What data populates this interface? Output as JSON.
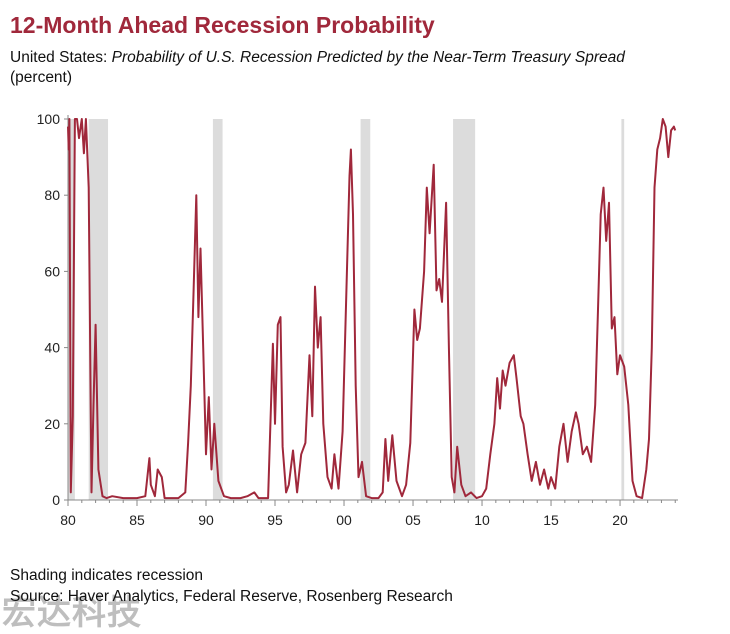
{
  "header": {
    "title": "12-Month Ahead Recession Probability",
    "subtitle_prefix": "United States: ",
    "subtitle_italic": "Probability of U.S. Recession Predicted by the Near-Term Treasury Spread",
    "units": "(percent)"
  },
  "footer": {
    "note": "Shading indicates recession",
    "source": "Source: Haver Analytics, Federal Reserve, Rosenberg Research",
    "watermark": "宏达科技"
  },
  "colors": {
    "line": "#a0283b",
    "title": "#a0283b",
    "recession_shade": "#dcdcdc",
    "axis": "#888888"
  },
  "chart_data": {
    "type": "line",
    "title": "12-Month Ahead Recession Probability",
    "xlabel": "",
    "ylabel": "(percent)",
    "xlim": [
      1980.0,
      2024.2
    ],
    "ylim": [
      0,
      100
    ],
    "x_ticks": [
      1980,
      1985,
      1990,
      1995,
      2000,
      2005,
      2010,
      2015,
      2020
    ],
    "x_tick_labels": [
      "80",
      "85",
      "90",
      "95",
      "00",
      "05",
      "10",
      "15",
      "20"
    ],
    "y_ticks": [
      0,
      20,
      40,
      60,
      80,
      100
    ],
    "y_tick_labels": [
      "0",
      "20",
      "40",
      "60",
      "80",
      "100"
    ],
    "grid": false,
    "recessions": [
      [
        1980.0,
        1980.5
      ],
      [
        1981.5,
        1982.9
      ],
      [
        1990.5,
        1991.2
      ],
      [
        2001.2,
        2001.9
      ],
      [
        2007.9,
        2009.5
      ],
      [
        2020.1,
        2020.3
      ]
    ],
    "series": [
      {
        "points": [
          [
            1980.0,
            98
          ],
          [
            1980.05,
            92
          ],
          [
            1980.1,
            100
          ],
          [
            1980.2,
            2
          ],
          [
            1980.35,
            22
          ],
          [
            1980.5,
            100
          ],
          [
            1980.65,
            100
          ],
          [
            1980.8,
            95
          ],
          [
            1981.0,
            100
          ],
          [
            1981.15,
            91
          ],
          [
            1981.3,
            100
          ],
          [
            1981.5,
            82
          ],
          [
            1981.7,
            2
          ],
          [
            1981.85,
            25
          ],
          [
            1982.0,
            46
          ],
          [
            1982.2,
            8
          ],
          [
            1982.5,
            1
          ],
          [
            1982.8,
            0.5
          ],
          [
            1983.2,
            1
          ],
          [
            1984.0,
            0.5
          ],
          [
            1985.0,
            0.5
          ],
          [
            1985.6,
            1
          ],
          [
            1985.9,
            11
          ],
          [
            1986.0,
            4
          ],
          [
            1986.3,
            1
          ],
          [
            1986.5,
            8
          ],
          [
            1986.8,
            6
          ],
          [
            1987.0,
            0.5
          ],
          [
            1988.0,
            0.5
          ],
          [
            1988.5,
            2
          ],
          [
            1988.7,
            15
          ],
          [
            1988.9,
            30
          ],
          [
            1989.1,
            55
          ],
          [
            1989.3,
            80
          ],
          [
            1989.45,
            48
          ],
          [
            1989.6,
            66
          ],
          [
            1989.8,
            40
          ],
          [
            1990.0,
            12
          ],
          [
            1990.2,
            27
          ],
          [
            1990.4,
            8
          ],
          [
            1990.6,
            20
          ],
          [
            1990.9,
            5
          ],
          [
            1991.3,
            1
          ],
          [
            1991.8,
            0.5
          ],
          [
            1992.5,
            0.5
          ],
          [
            1993.0,
            1
          ],
          [
            1993.5,
            2
          ],
          [
            1993.8,
            0.5
          ],
          [
            1994.5,
            0.5
          ],
          [
            1994.85,
            41
          ],
          [
            1995.0,
            20
          ],
          [
            1995.2,
            46
          ],
          [
            1995.4,
            48
          ],
          [
            1995.55,
            14
          ],
          [
            1995.8,
            2
          ],
          [
            1996.0,
            4
          ],
          [
            1996.3,
            13
          ],
          [
            1996.6,
            2
          ],
          [
            1996.9,
            12
          ],
          [
            1997.2,
            15
          ],
          [
            1997.5,
            38
          ],
          [
            1997.7,
            22
          ],
          [
            1997.9,
            56
          ],
          [
            1998.1,
            40
          ],
          [
            1998.3,
            48
          ],
          [
            1998.5,
            20
          ],
          [
            1998.8,
            6
          ],
          [
            1999.1,
            3
          ],
          [
            1999.3,
            12
          ],
          [
            1999.6,
            3
          ],
          [
            1999.9,
            18
          ],
          [
            2000.15,
            52
          ],
          [
            2000.4,
            85
          ],
          [
            2000.5,
            92
          ],
          [
            2000.65,
            75
          ],
          [
            2000.85,
            30
          ],
          [
            2001.05,
            6
          ],
          [
            2001.3,
            10
          ],
          [
            2001.6,
            1
          ],
          [
            2002.0,
            0.5
          ],
          [
            2002.5,
            0.5
          ],
          [
            2002.8,
            2
          ],
          [
            2003.0,
            16
          ],
          [
            2003.2,
            5
          ],
          [
            2003.5,
            17
          ],
          [
            2003.8,
            5
          ],
          [
            2004.2,
            1
          ],
          [
            2004.5,
            4
          ],
          [
            2004.8,
            15
          ],
          [
            2005.1,
            50
          ],
          [
            2005.3,
            42
          ],
          [
            2005.5,
            45
          ],
          [
            2005.8,
            60
          ],
          [
            2006.0,
            82
          ],
          [
            2006.2,
            70
          ],
          [
            2006.5,
            88
          ],
          [
            2006.7,
            55
          ],
          [
            2006.9,
            58
          ],
          [
            2007.1,
            52
          ],
          [
            2007.4,
            78
          ],
          [
            2007.6,
            40
          ],
          [
            2007.8,
            6
          ],
          [
            2008.0,
            2
          ],
          [
            2008.2,
            14
          ],
          [
            2008.5,
            4
          ],
          [
            2008.8,
            1
          ],
          [
            2009.2,
            2
          ],
          [
            2009.6,
            0.5
          ],
          [
            2010.0,
            1
          ],
          [
            2010.3,
            3
          ],
          [
            2010.6,
            12
          ],
          [
            2010.9,
            20
          ],
          [
            2011.1,
            32
          ],
          [
            2011.3,
            24
          ],
          [
            2011.5,
            34
          ],
          [
            2011.7,
            30
          ],
          [
            2012.0,
            36
          ],
          [
            2012.3,
            38
          ],
          [
            2012.5,
            32
          ],
          [
            2012.8,
            22
          ],
          [
            2013.0,
            20
          ],
          [
            2013.3,
            12
          ],
          [
            2013.6,
            5
          ],
          [
            2013.9,
            10
          ],
          [
            2014.2,
            4
          ],
          [
            2014.5,
            8
          ],
          [
            2014.8,
            3
          ],
          [
            2015.0,
            6
          ],
          [
            2015.3,
            3
          ],
          [
            2015.6,
            14
          ],
          [
            2015.9,
            20
          ],
          [
            2016.2,
            10
          ],
          [
            2016.5,
            18
          ],
          [
            2016.8,
            23
          ],
          [
            2017.0,
            20
          ],
          [
            2017.3,
            12
          ],
          [
            2017.6,
            14
          ],
          [
            2017.9,
            10
          ],
          [
            2018.2,
            25
          ],
          [
            2018.4,
            50
          ],
          [
            2018.6,
            75
          ],
          [
            2018.8,
            82
          ],
          [
            2019.0,
            68
          ],
          [
            2019.2,
            78
          ],
          [
            2019.4,
            45
          ],
          [
            2019.6,
            48
          ],
          [
            2019.8,
            33
          ],
          [
            2020.0,
            38
          ],
          [
            2020.3,
            35
          ],
          [
            2020.6,
            25
          ],
          [
            2020.9,
            5
          ],
          [
            2021.2,
            1
          ],
          [
            2021.6,
            0.5
          ],
          [
            2021.9,
            8
          ],
          [
            2022.1,
            16
          ],
          [
            2022.3,
            40
          ],
          [
            2022.5,
            82
          ],
          [
            2022.7,
            92
          ],
          [
            2022.9,
            95
          ],
          [
            2023.1,
            100
          ],
          [
            2023.3,
            98
          ],
          [
            2023.5,
            90
          ],
          [
            2023.7,
            97
          ],
          [
            2023.9,
            98
          ],
          [
            2024.0,
            97
          ]
        ]
      }
    ]
  }
}
